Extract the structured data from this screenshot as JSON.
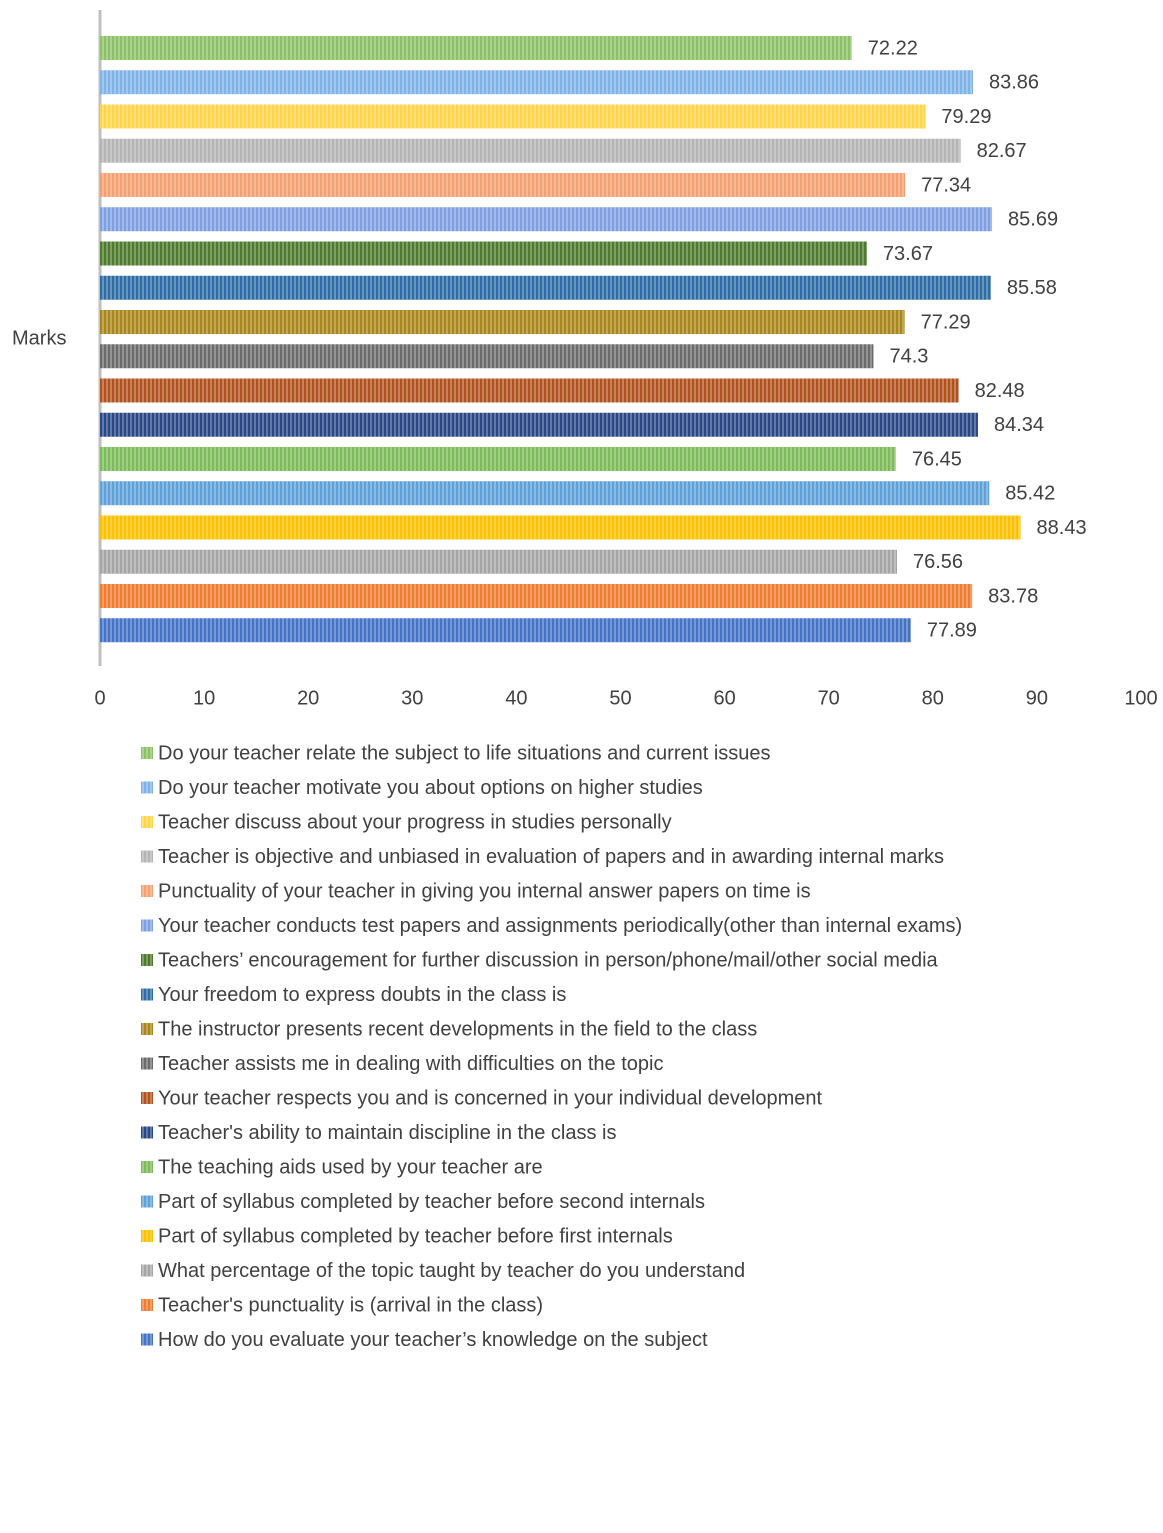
{
  "chart_data": {
    "type": "bar",
    "orientation": "horizontal",
    "y_label": "Marks",
    "xlim": [
      0,
      100
    ],
    "xticks": [
      0,
      10,
      20,
      30,
      40,
      50,
      60,
      70,
      80,
      90,
      100
    ],
    "grid": false,
    "legend": "bottom",
    "series": [
      {
        "name": "Do your teacher relate the subject to life situations and current issues",
        "color": "#8cc168",
        "values": [
          72.22
        ]
      },
      {
        "name": "Do your teacher motivate you about options on higher studies",
        "color": "#7fb2e5",
        "values": [
          83.86
        ]
      },
      {
        "name": "Teacher discuss about your progress in studies personally",
        "color": "#ffd447",
        "values": [
          79.29
        ]
      },
      {
        "name": "Teacher is objective and unbiased in evaluation of papers and in awarding internal marks",
        "color": "#b4b4b4",
        "values": [
          82.67
        ]
      },
      {
        "name": "Punctuality of your teacher in giving you internal answer papers on time is",
        "color": "#f4a070",
        "values": [
          77.34
        ]
      },
      {
        "name": "Your teacher conducts test papers and assignments periodically(other than internal exams)",
        "color": "#7f9fe0",
        "values": [
          85.69
        ]
      },
      {
        "name": "Teachers’ encouragement for further discussion in person/phone/mail/other social media",
        "color": "#4e7a2e",
        "values": [
          73.67
        ]
      },
      {
        "name": "Your freedom to express doubts in the class is",
        "color": "#2e6da4",
        "values": [
          85.58
        ]
      },
      {
        "name": "The instructor presents recent developments in the field to the class",
        "color": "#a8861c",
        "values": [
          77.29
        ]
      },
      {
        "name": "Teacher assists me in dealing with difficulties on the topic",
        "color": "#6b6b6b",
        "values": [
          74.3
        ]
      },
      {
        "name": "Your teacher respects you and is concerned in your individual development",
        "color": "#b0521e",
        "values": [
          82.48
        ]
      },
      {
        "name": "Teacher's ability to maintain discipline in the class is",
        "color": "#2a4785",
        "values": [
          84.34
        ]
      },
      {
        "name": "The teaching aids used by your teacher are",
        "color": "#7dba5a",
        "values": [
          76.45
        ]
      },
      {
        "name": "Part of syllabus completed by teacher before second internals",
        "color": "#5fa0d8",
        "values": [
          85.42
        ]
      },
      {
        "name": "Part of syllabus completed by teacher before first internals",
        "color": "#ffc000",
        "values": [
          88.43
        ]
      },
      {
        "name": "What percentage of the topic taught by teacher do you understand",
        "color": "#a5a5a5",
        "values": [
          76.56
        ]
      },
      {
        "name": "Teacher's punctuality is (arrival in the class)",
        "color": "#ed7d31",
        "values": [
          83.78
        ]
      },
      {
        "name": "How do you evaluate your teacher’s knowledge on the subject",
        "color": "#4472c4",
        "values": [
          77.89
        ]
      }
    ]
  }
}
